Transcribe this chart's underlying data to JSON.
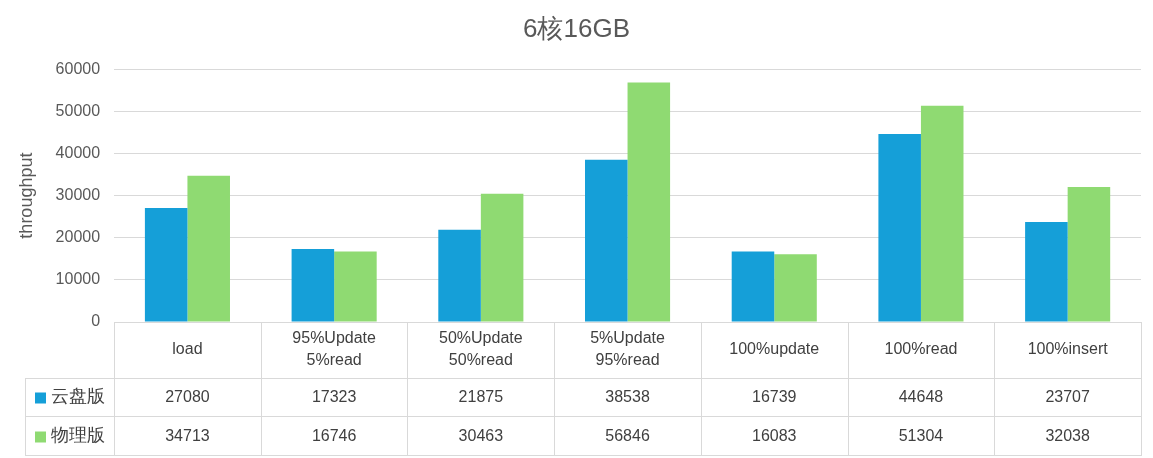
{
  "chart_data": {
    "type": "bar",
    "title": "6核16GB",
    "ylabel": "throughput",
    "categories": [
      "load",
      "95%Update 5%read",
      "50%Update 50%read",
      "5%Update 95%read",
      "100%update",
      "100%read",
      "100%insert"
    ],
    "series": [
      {
        "name": "云盘版",
        "color": "#159fd8",
        "values": [
          27080,
          17323,
          21875,
          38538,
          16739,
          44648,
          23707
        ]
      },
      {
        "name": "物理版",
        "color": "#8fda72",
        "values": [
          34713,
          16746,
          30463,
          56846,
          16083,
          51304,
          32038
        ]
      }
    ],
    "ylim": [
      0,
      60000
    ],
    "yticks": [
      0,
      10000,
      20000,
      30000,
      40000,
      50000,
      60000
    ],
    "grid": "y",
    "legend": "bottom",
    "data_labels": true
  }
}
